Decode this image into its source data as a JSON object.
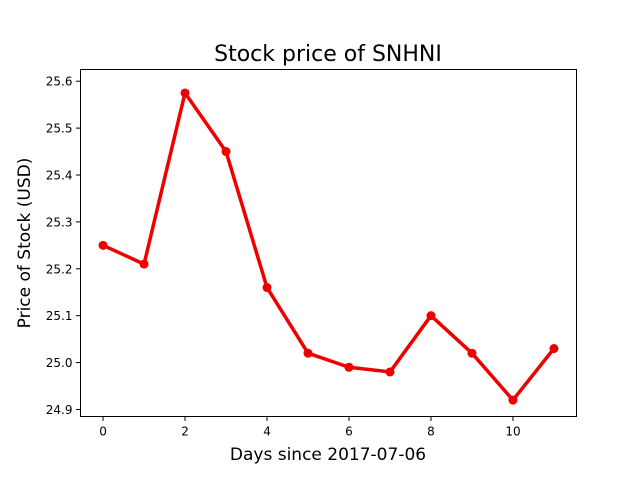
{
  "chart_data": {
    "type": "line",
    "title": "Stock price of SNHNI",
    "xlabel": "Days since 2017-07-06",
    "ylabel": "Price of Stock (USD)",
    "x": [
      0,
      1,
      2,
      3,
      4,
      5,
      6,
      7,
      8,
      9,
      10,
      11
    ],
    "series": [
      {
        "values": [
          25.25,
          25.21,
          25.575,
          25.45,
          25.16,
          25.02,
          24.99,
          24.98,
          25.1,
          25.02,
          24.92,
          25.03
        ],
        "color": "#ee0000",
        "marker": "circle"
      }
    ],
    "xlim": [
      -0.55,
      11.55
    ],
    "ylim": [
      24.9,
      25.6
    ],
    "xticks": [
      0,
      2,
      4,
      6,
      8,
      10
    ],
    "xtick_labels": [
      "0",
      "2",
      "4",
      "6",
      "8",
      "10"
    ],
    "yticks": [
      24.9,
      25.0,
      25.1,
      25.2,
      25.3,
      25.4,
      25.5,
      25.6
    ],
    "ytick_labels": [
      "24.9",
      "25.0",
      "25.1",
      "25.2",
      "25.3",
      "25.4",
      "25.5",
      "25.6"
    ],
    "grid": false,
    "legend": false
  }
}
